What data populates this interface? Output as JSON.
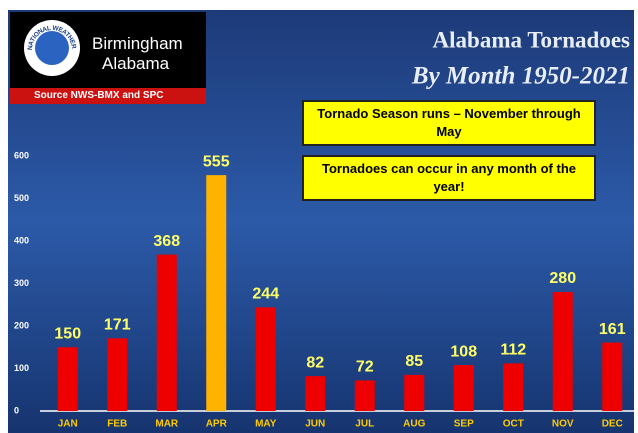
{
  "logo": {
    "emblem": "NATIONAL WEATHER SERVICE",
    "line1": "Birmingham",
    "line2": "Alabama",
    "source": "Source NWS-BMX and SPC"
  },
  "chart_data": {
    "type": "bar",
    "title": "Alabama Tornadoes",
    "subtitle": "By Month 1950-2021",
    "annotations": [
      "Tornado Season runs – November through May",
      "Tornadoes can occur in any month of the year!"
    ],
    "categories": [
      "JAN",
      "FEB",
      "MAR",
      "APR",
      "MAY",
      "JUN",
      "JUL",
      "AUG",
      "SEP",
      "OCT",
      "NOV",
      "DEC"
    ],
    "values": [
      150,
      171,
      368,
      555,
      244,
      82,
      72,
      85,
      108,
      112,
      280,
      161
    ],
    "colors": [
      "#ee0000",
      "#ee0000",
      "#ee0000",
      "#ffb300",
      "#ee0000",
      "#ee0000",
      "#ee0000",
      "#ee0000",
      "#ee0000",
      "#ee0000",
      "#ee0000",
      "#ee0000"
    ],
    "ylim": [
      0,
      600
    ],
    "yticks": [
      0,
      100,
      200,
      300,
      400,
      500,
      600
    ],
    "grid": false
  }
}
